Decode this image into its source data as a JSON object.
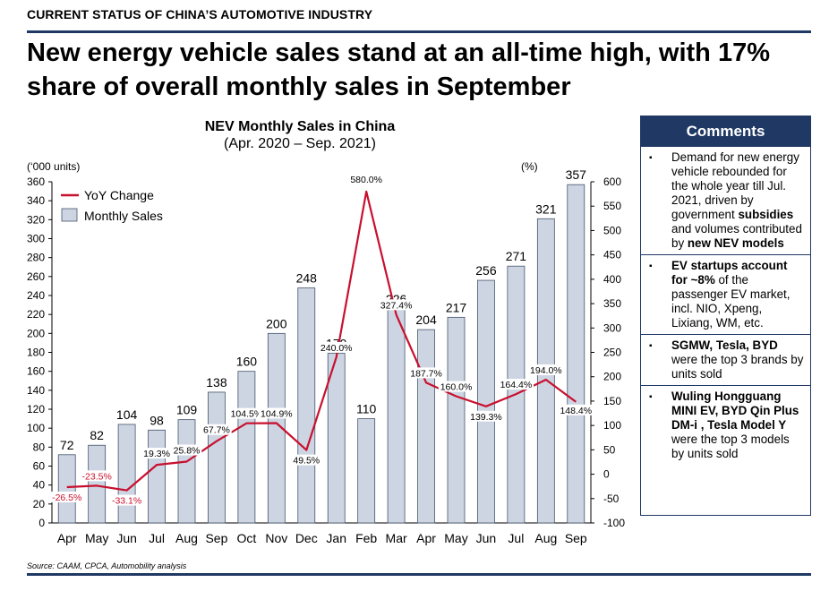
{
  "header": {
    "section": "CURRENT STATUS OF CHINA’S AUTOMOTIVE INDUSTRY",
    "headline": "New energy vehicle sales stand at an all-time high, with 17% share of overall monthly sales in September"
  },
  "chart_data": {
    "type": "bar",
    "title": "NEV Monthly Sales in China",
    "subtitle": "(Apr. 2020 – Sep. 2021)",
    "left_axis_unit": "(‘000 units)",
    "right_axis_unit": "(%)",
    "categories": [
      "Apr",
      "May",
      "Jun",
      "Jul",
      "Aug",
      "Sep",
      "Oct",
      "Nov",
      "Dec",
      "Jan",
      "Feb",
      "Mar",
      "Apr",
      "May",
      "Jun",
      "Jul",
      "Aug",
      "Sep"
    ],
    "series": [
      {
        "name": "Monthly Sales",
        "type": "bar",
        "axis": "left",
        "color": "#cdd5e3",
        "values": [
          72,
          82,
          104,
          98,
          109,
          138,
          160,
          200,
          248,
          179,
          110,
          226,
          204,
          217,
          256,
          271,
          321,
          357
        ]
      },
      {
        "name": "YoY Change",
        "type": "line",
        "axis": "right",
        "color": "#c8102e",
        "values": [
          -26.5,
          -23.5,
          -33.1,
          19.3,
          25.8,
          67.7,
          104.5,
          104.9,
          49.5,
          240.0,
          580.0,
          327.4,
          187.7,
          160.0,
          139.3,
          164.4,
          194.0,
          148.4
        ],
        "labels": [
          "-26.5%",
          "-23.5%",
          "-33.1%",
          "19.3%",
          "25.8%",
          "67.7%",
          "104.5%",
          "104.9%",
          "49.5%",
          "240.0%",
          "580.0%",
          "327.4%",
          "187.7%",
          "160.0%",
          "139.3%",
          "164.4%",
          "194.0%",
          "148.4%"
        ]
      }
    ],
    "ylim_left": [
      0,
      360
    ],
    "yticks_left": [
      0,
      20,
      40,
      60,
      80,
      100,
      120,
      140,
      160,
      180,
      200,
      220,
      240,
      260,
      280,
      300,
      320,
      340,
      360
    ],
    "ylim_right": [
      -100,
      600
    ],
    "yticks_right": [
      -100,
      -50,
      0,
      50,
      100,
      150,
      200,
      250,
      300,
      350,
      400,
      450,
      500,
      550,
      600
    ],
    "legend": "top-left",
    "grid": false
  },
  "comments": {
    "title": "Comments",
    "bullet": "▪",
    "items": [
      [
        {
          "t": "Demand for new energy vehicle rebounded for the whole year till Jul. 2021, driven by government ",
          "b": false
        },
        {
          "t": "subsidies",
          "b": true
        },
        {
          "t": " and volumes contributed by ",
          "b": false
        },
        {
          "t": "new NEV models",
          "b": true
        }
      ],
      [
        {
          "t": "EV startups account for ~8%",
          "b": true
        },
        {
          "t": " of the passenger EV market, incl. NIO, Xpeng, Lixiang, WM, etc.",
          "b": false
        }
      ],
      [
        {
          "t": "SGMW, Tesla, BYD",
          "b": true
        },
        {
          "t": " were the top 3 brands by units sold",
          "b": false
        }
      ],
      [
        {
          "t": "Wuling Hongguang MINI EV, BYD Qin Plus DM-i , Tesla Model Y",
          "b": true
        },
        {
          "t": " were the top 3 models by units sold",
          "b": false
        }
      ]
    ]
  },
  "footer": {
    "source": "Source: CAAM, CPCA, Automobility analysis"
  }
}
